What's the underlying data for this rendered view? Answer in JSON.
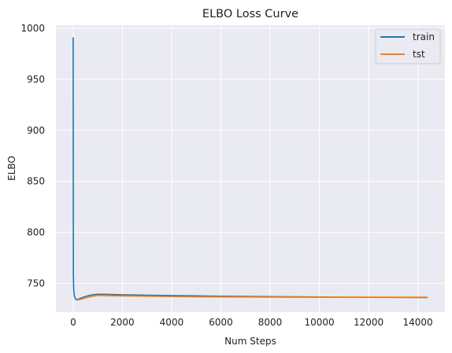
{
  "chart_data": {
    "type": "line",
    "title": "ELBO Loss Curve",
    "xlabel": "Num Steps",
    "ylabel": "ELBO",
    "xlim": [
      -700,
      15100
    ],
    "ylim": [
      722,
      1003
    ],
    "xticks": [
      0,
      2000,
      4000,
      6000,
      8000,
      10000,
      12000,
      14000
    ],
    "yticks": [
      750,
      800,
      850,
      900,
      950,
      1000
    ],
    "grid": true,
    "legend_position": "top-right",
    "colors": {
      "train": "#1f77b4",
      "tst": "#ff7f0e",
      "background": "#eaeaf2",
      "grid": "#ffffff"
    },
    "series": [
      {
        "name": "train",
        "x": [
          0,
          10,
          20,
          40,
          60,
          100,
          150,
          200,
          300,
          400,
          600,
          800,
          1000,
          1200,
          1500,
          2000,
          3000,
          4000,
          5000,
          6000,
          7000,
          8000,
          9000,
          10000,
          11000,
          12000,
          13000,
          14000,
          14400
        ],
        "values": [
          991,
          760,
          745,
          739,
          737,
          735,
          734,
          734.5,
          735.5,
          736.5,
          738,
          739,
          739.5,
          739.5,
          739.3,
          739,
          738.5,
          738.2,
          737.9,
          737.6,
          737.4,
          737.2,
          737,
          736.8,
          736.6,
          736.5,
          736.4,
          736.3,
          736.3
        ]
      },
      {
        "name": "tst",
        "x": [
          200,
          400,
          600,
          800,
          1000,
          1200,
          1500,
          2000,
          3000,
          4000,
          5000,
          6000,
          7000,
          8000,
          9000,
          10000,
          11000,
          12000,
          13000,
          14000,
          14400
        ],
        "values": [
          734,
          735,
          736.5,
          737.5,
          738.3,
          738.3,
          738,
          737.8,
          737.5,
          737.2,
          737,
          736.9,
          736.8,
          736.7,
          736.6,
          736.5,
          736.6,
          736.6,
          736.6,
          736.6,
          736.6
        ]
      }
    ]
  }
}
